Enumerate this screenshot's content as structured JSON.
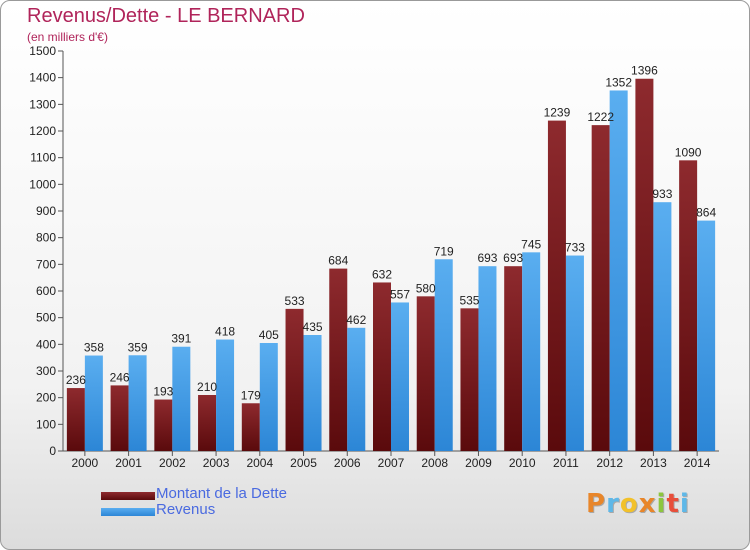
{
  "title": "Revenus/Dette - LE BERNARD",
  "subtitle": "(en milliers d'€)",
  "colors": {
    "dette": "#7a1a1e",
    "revenus": "#4aa0e6",
    "title": "#b0245a",
    "legend_text": "#4a6ae0"
  },
  "legend": [
    {
      "name": "Montant de la Dette",
      "icon": "dark-red-bar-swatch"
    },
    {
      "name": "Revenus",
      "icon": "blue-bar-swatch"
    }
  ],
  "logo": {
    "text": "Proxiti",
    "icon": "proxiti-logo"
  },
  "chart_data": {
    "type": "bar",
    "title": "Revenus/Dette - LE BERNARD",
    "subtitle": "(en milliers d'€)",
    "xlabel": "",
    "ylabel": "",
    "ylim": [
      0,
      1500
    ],
    "yticks": [
      0,
      100,
      200,
      300,
      400,
      500,
      600,
      700,
      800,
      900,
      1000,
      1100,
      1200,
      1300,
      1400,
      1500
    ],
    "grid": false,
    "legend_position": "bottom-left",
    "categories": [
      "2000",
      "2001",
      "2002",
      "2003",
      "2004",
      "2005",
      "2006",
      "2007",
      "2008",
      "2009",
      "2010",
      "2011",
      "2012",
      "2013",
      "2014"
    ],
    "series": [
      {
        "name": "Montant de la Dette",
        "values": [
          236,
          246,
          193,
          210,
          179,
          533,
          684,
          632,
          580,
          535,
          693,
          1239,
          1222,
          1396,
          1090
        ]
      },
      {
        "name": "Revenus",
        "values": [
          358,
          359,
          391,
          418,
          405,
          435,
          462,
          557,
          719,
          693,
          745,
          733,
          1352,
          933,
          864
        ]
      }
    ]
  }
}
